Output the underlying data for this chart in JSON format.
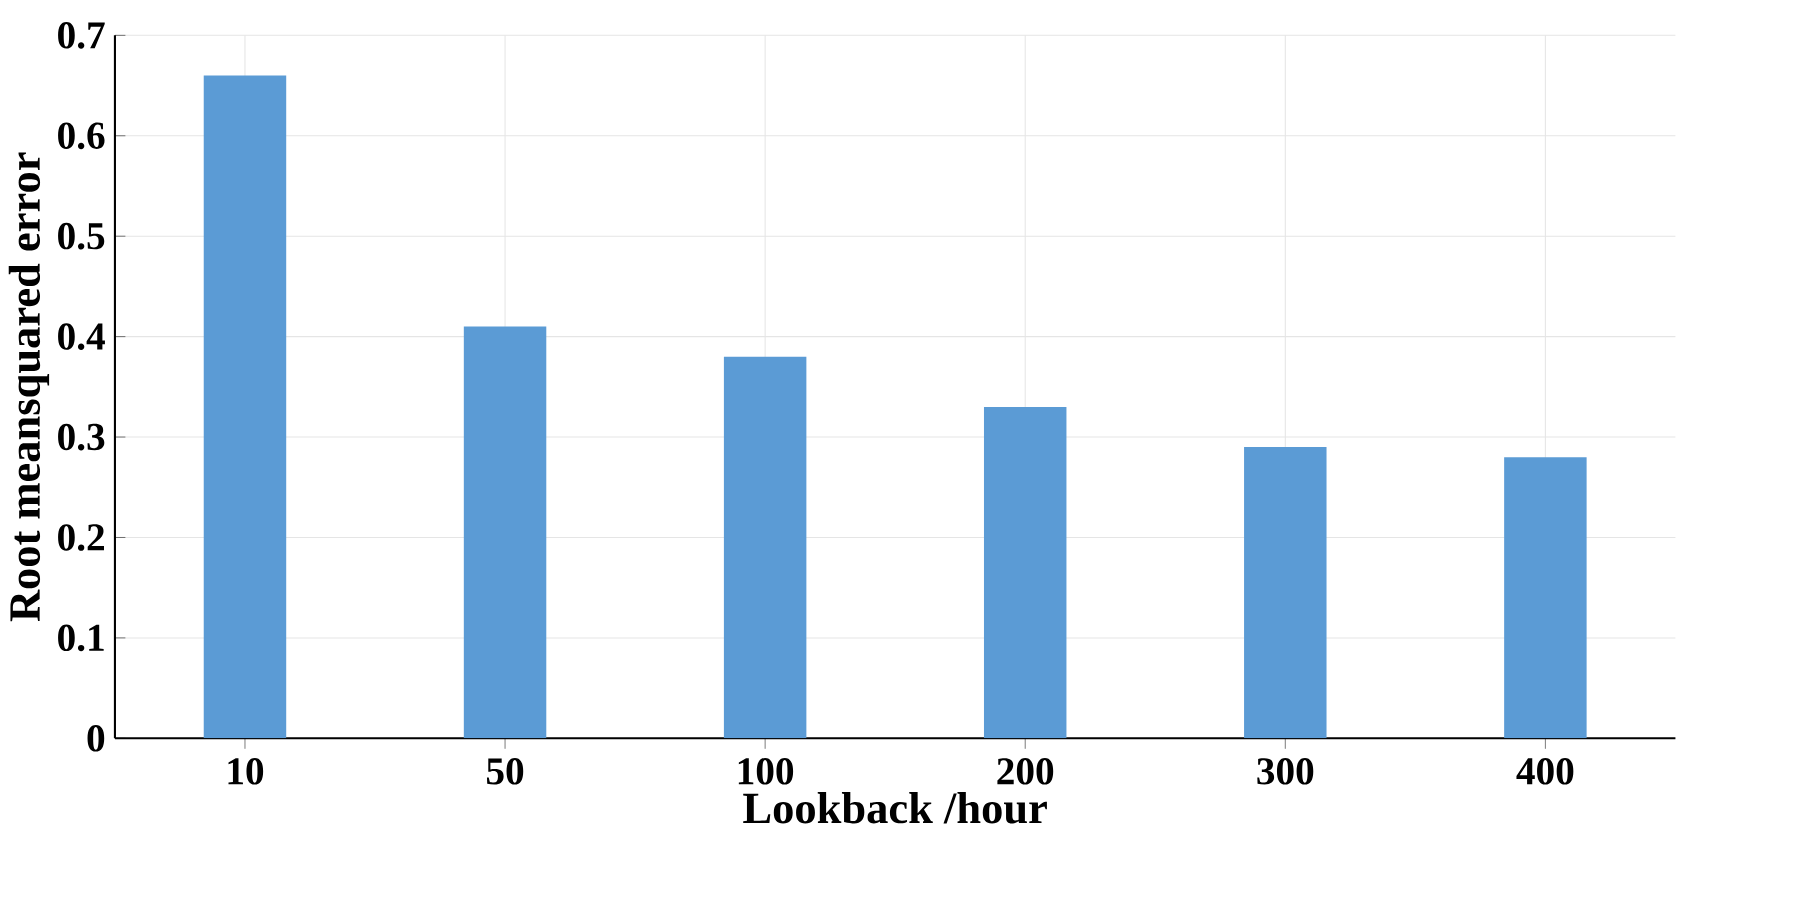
{
  "chart_data": {
    "type": "bar",
    "xlabel": "Lookback /hour",
    "ylabel": "Root meansquared error",
    "categories": [
      "10",
      "50",
      "100",
      "200",
      "300",
      "400"
    ],
    "values": [
      0.66,
      0.41,
      0.38,
      0.33,
      0.29,
      0.28
    ],
    "color": "#5b9bd5",
    "ylim": [
      0,
      0.7
    ],
    "yticks": [
      0,
      0.1,
      0.2,
      0.3,
      0.4,
      0.5,
      0.6,
      0.7
    ],
    "grid": true
  }
}
